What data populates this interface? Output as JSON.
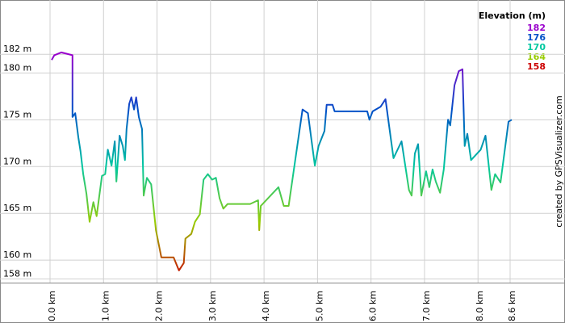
{
  "chart_data": {
    "type": "line",
    "legend_title": "Elevation (m)",
    "color_scale": [
      {
        "value": 182,
        "color": "#9900cc"
      },
      {
        "value": 176,
        "color": "#0050c8"
      },
      {
        "value": 170,
        "color": "#00c8a0"
      },
      {
        "value": 164,
        "color": "#99cc00"
      },
      {
        "value": 158,
        "color": "#cc0000"
      }
    ],
    "credit": "created by GPSVisualizer.com",
    "grid": true,
    "legend": "top-right",
    "xlim": [
      0,
      8.6
    ],
    "ylim": [
      157.6,
      187.8
    ],
    "xticks": [
      {
        "value": 0,
        "label": "0.0 km"
      },
      {
        "value": 1,
        "label": "1.0 km"
      },
      {
        "value": 2,
        "label": "2.0 km"
      },
      {
        "value": 3,
        "label": "3.0 km"
      },
      {
        "value": 4,
        "label": "4.0 km"
      },
      {
        "value": 5,
        "label": "5.0 km"
      },
      {
        "value": 6,
        "label": "6.0 km"
      },
      {
        "value": 7,
        "label": "7.0 km"
      },
      {
        "value": 8,
        "label": "8.0 km"
      },
      {
        "value": 8.6,
        "label": "8.6 km"
      }
    ],
    "yticks": [
      {
        "value": 158,
        "label": "158 m"
      },
      {
        "value": 160,
        "label": "160 m"
      },
      {
        "value": 165,
        "label": "165 m"
      },
      {
        "value": 170,
        "label": "170 m"
      },
      {
        "value": 175,
        "label": "175 m"
      },
      {
        "value": 180,
        "label": "180 m"
      },
      {
        "value": 182,
        "label": "182 m"
      }
    ],
    "x": [
      0.03,
      0.08,
      0.21,
      0.42,
      0.42,
      0.47,
      0.53,
      0.57,
      0.62,
      0.68,
      0.74,
      0.81,
      0.87,
      0.97,
      1.03,
      1.08,
      1.15,
      1.21,
      1.24,
      1.3,
      1.36,
      1.4,
      1.43,
      1.48,
      1.52,
      1.57,
      1.61,
      1.66,
      1.72,
      1.75,
      1.81,
      1.89,
      1.98,
      2.08,
      2.31,
      2.41,
      2.5,
      2.53,
      2.64,
      2.71,
      2.8,
      2.87,
      2.95,
      3.03,
      3.1,
      3.17,
      3.24,
      3.32,
      3.74,
      3.89,
      3.91,
      3.94,
      4.27,
      4.37,
      4.46,
      4.72,
      4.82,
      4.95,
      5.02,
      5.13,
      5.17,
      5.28,
      5.32,
      5.93,
      5.97,
      6.03,
      6.18,
      6.27,
      6.42,
      6.57,
      6.71,
      6.76,
      6.82,
      6.88,
      6.94,
      7.03,
      7.09,
      7.15,
      7.21,
      7.29,
      7.36,
      7.44,
      7.48,
      7.56,
      7.64,
      7.71,
      7.75,
      7.8,
      7.87,
      8.05,
      8.14,
      8.25,
      8.32,
      8.42,
      8.57,
      8.63
    ],
    "values": [
      181.4,
      181.9,
      182.2,
      181.9,
      175.3,
      175.7,
      173.1,
      171.6,
      169.2,
      167.1,
      164.1,
      166.2,
      164.7,
      169.0,
      169.2,
      171.8,
      170.1,
      172.7,
      168.4,
      173.3,
      172.2,
      170.7,
      174.0,
      176.7,
      177.4,
      176.1,
      177.4,
      175.3,
      174.0,
      166.9,
      168.8,
      168.1,
      163.2,
      160.3,
      160.3,
      158.9,
      159.7,
      162.3,
      162.8,
      164.1,
      164.9,
      168.6,
      169.2,
      168.6,
      168.8,
      166.6,
      165.5,
      166.0,
      166.0,
      166.4,
      163.2,
      165.8,
      167.8,
      165.8,
      165.8,
      176.1,
      175.7,
      170.1,
      172.2,
      173.8,
      176.6,
      176.6,
      175.9,
      175.9,
      175.0,
      175.9,
      176.4,
      177.2,
      170.9,
      172.7,
      167.5,
      166.9,
      171.4,
      172.4,
      166.9,
      169.5,
      167.8,
      169.7,
      168.4,
      167.2,
      169.7,
      175.0,
      174.4,
      178.7,
      180.2,
      180.4,
      172.2,
      173.5,
      170.7,
      171.8,
      173.3,
      167.5,
      169.2,
      168.3,
      174.8,
      175.0
    ]
  }
}
